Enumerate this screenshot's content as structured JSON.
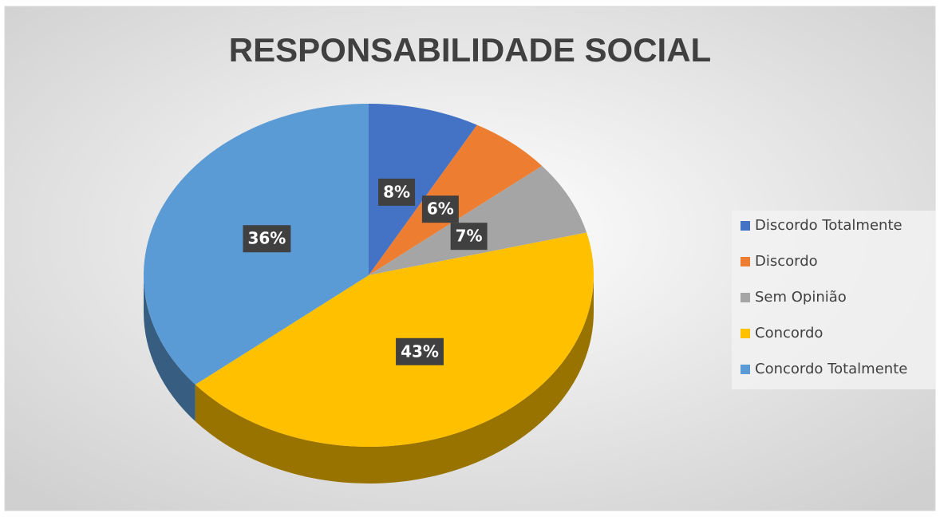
{
  "chart_data": {
    "type": "pie",
    "title": "RESPONSABILIDADE SOCIAL",
    "categories": [
      "Discordo Totalmente",
      "Discordo",
      "Sem Opinião",
      "Concordo",
      "Concordo Totalmente"
    ],
    "values": [
      8,
      6,
      7,
      43,
      36
    ],
    "value_labels": [
      "8%",
      "6%",
      "7%",
      "43%",
      "36%"
    ],
    "colors": [
      "#4472c4",
      "#ed7d31",
      "#a5a5a5",
      "#ffc000",
      "#5b9bd5"
    ],
    "legend": "right"
  }
}
